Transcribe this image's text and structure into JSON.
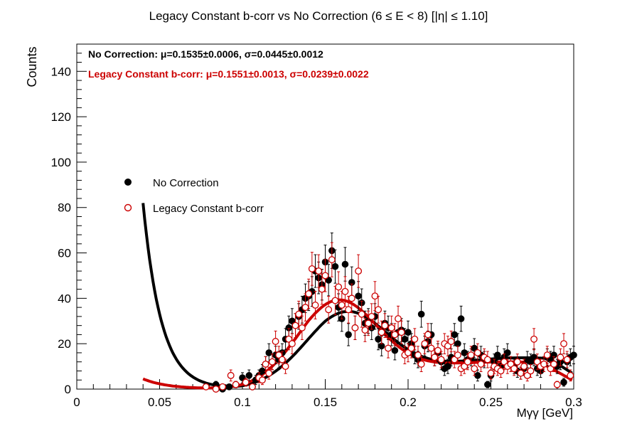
{
  "chart_data": {
    "type": "scatter",
    "title": "Legacy Constant b-corr vs No Correction   (6 ≤ E < 8)   [|η| ≤ 1.10]",
    "xlabel": "Mγγ [GeV]",
    "ylabel": "Counts",
    "xlim": [
      0,
      0.3
    ],
    "ylim": [
      0,
      152
    ],
    "x_ticks": [
      0,
      0.05,
      0.1,
      0.15,
      0.2,
      0.25,
      0.3
    ],
    "x_tick_labels": [
      "0",
      "0.05",
      "0.1",
      "0.15",
      "0.2",
      "0.25",
      "0.3"
    ],
    "y_ticks": [
      0,
      20,
      40,
      60,
      80,
      100,
      120,
      140
    ],
    "y_tick_labels": [
      "0",
      "20",
      "40",
      "60",
      "80",
      "100",
      "120",
      "140"
    ],
    "grid": false,
    "legend_position": "middle-left",
    "legend": [
      {
        "label": "No Correction",
        "marker": "filled-circle",
        "color": "#000000"
      },
      {
        "label": "Legacy Constant b-corr",
        "marker": "open-circle",
        "color": "#cc0000"
      }
    ],
    "annotations": [
      {
        "text": "No Correction: μ=0.1535±0.0006, σ=0.0445±0.0012",
        "color": "#000000"
      },
      {
        "text": "Legacy Constant b-corr: μ=0.1551±0.0013, σ=0.0239±0.0022",
        "color": "#cc0000"
      }
    ],
    "series": [
      {
        "name": "No Correction",
        "style": "filled-circle",
        "color": "#000000",
        "x": [
          0.084,
          0.088,
          0.092,
          0.096,
          0.1,
          0.104,
          0.106,
          0.108,
          0.11,
          0.112,
          0.114,
          0.116,
          0.118,
          0.12,
          0.122,
          0.124,
          0.126,
          0.128,
          0.13,
          0.132,
          0.134,
          0.136,
          0.138,
          0.14,
          0.142,
          0.144,
          0.146,
          0.148,
          0.15,
          0.152,
          0.154,
          0.156,
          0.158,
          0.16,
          0.162,
          0.164,
          0.166,
          0.168,
          0.17,
          0.172,
          0.174,
          0.176,
          0.178,
          0.18,
          0.182,
          0.184,
          0.186,
          0.188,
          0.19,
          0.192,
          0.194,
          0.196,
          0.198,
          0.2,
          0.202,
          0.204,
          0.206,
          0.208,
          0.21,
          0.212,
          0.214,
          0.216,
          0.218,
          0.22,
          0.222,
          0.224,
          0.226,
          0.228,
          0.23,
          0.232,
          0.234,
          0.236,
          0.238,
          0.24,
          0.242,
          0.244,
          0.246,
          0.248,
          0.25,
          0.252,
          0.254,
          0.256,
          0.258,
          0.26,
          0.262,
          0.264,
          0.266,
          0.268,
          0.27,
          0.272,
          0.274,
          0.276,
          0.278,
          0.28,
          0.282,
          0.284,
          0.286,
          0.288,
          0.29,
          0.292,
          0.294,
          0.296,
          0.298,
          0.3
        ],
        "y": [
          2,
          0,
          1,
          2,
          5,
          6,
          1,
          4,
          6,
          8,
          11,
          16,
          12,
          15,
          13,
          16,
          22,
          27,
          30,
          28,
          32,
          35,
          40,
          41,
          43,
          52,
          49,
          46,
          56,
          48,
          61,
          54,
          36,
          31,
          55,
          24,
          47,
          27,
          41,
          38,
          29,
          30,
          27,
          32,
          22,
          19,
          29,
          27,
          24,
          17,
          25,
          26,
          22,
          25,
          20,
          15,
          13,
          33,
          19,
          21,
          24,
          14,
          16,
          12,
          9,
          10,
          14,
          24,
          20,
          31,
          16,
          13,
          14,
          18,
          6,
          15,
          13,
          2,
          6,
          12,
          15,
          10,
          14,
          16,
          11,
          10,
          8,
          7,
          9,
          13,
          12,
          14,
          9,
          8,
          11,
          14,
          13,
          15,
          10,
          12,
          3,
          12,
          14,
          15
        ],
        "fit": {
          "type": "gaussian+polynomial",
          "mean": 0.1535,
          "sigma": 0.0445
        }
      },
      {
        "name": "Legacy Constant b-corr",
        "style": "open-circle",
        "color": "#cc0000",
        "x": [
          0.078,
          0.084,
          0.088,
          0.093,
          0.096,
          0.102,
          0.106,
          0.11,
          0.112,
          0.114,
          0.116,
          0.118,
          0.12,
          0.122,
          0.124,
          0.126,
          0.128,
          0.13,
          0.132,
          0.134,
          0.136,
          0.138,
          0.14,
          0.142,
          0.144,
          0.146,
          0.148,
          0.15,
          0.152,
          0.154,
          0.156,
          0.158,
          0.16,
          0.162,
          0.164,
          0.166,
          0.168,
          0.17,
          0.172,
          0.174,
          0.176,
          0.178,
          0.18,
          0.182,
          0.184,
          0.186,
          0.188,
          0.19,
          0.192,
          0.194,
          0.196,
          0.198,
          0.2,
          0.202,
          0.204,
          0.206,
          0.208,
          0.21,
          0.212,
          0.214,
          0.216,
          0.218,
          0.22,
          0.222,
          0.224,
          0.226,
          0.228,
          0.23,
          0.232,
          0.234,
          0.236,
          0.238,
          0.24,
          0.242,
          0.244,
          0.246,
          0.248,
          0.25,
          0.252,
          0.254,
          0.256,
          0.258,
          0.26,
          0.262,
          0.264,
          0.266,
          0.268,
          0.27,
          0.272,
          0.274,
          0.276,
          0.278,
          0.28,
          0.282,
          0.284,
          0.286,
          0.288,
          0.29,
          0.292,
          0.294,
          0.296,
          0.298
        ],
        "y": [
          1,
          0,
          1,
          6,
          2,
          3,
          1,
          5,
          4,
          11,
          7,
          12,
          21,
          15,
          13,
          10,
          22,
          20,
          28,
          33,
          27,
          36,
          42,
          53,
          37,
          52,
          44,
          50,
          35,
          57,
          39,
          45,
          37,
          43,
          35,
          40,
          27,
          52,
          33,
          26,
          29,
          32,
          41,
          35,
          25,
          28,
          18,
          27,
          24,
          31,
          25,
          15,
          16,
          18,
          22,
          15,
          11,
          20,
          24,
          18,
          14,
          17,
          13,
          20,
          19,
          21,
          13,
          15,
          9,
          10,
          12,
          15,
          9,
          16,
          11,
          14,
          13,
          7,
          10,
          9,
          8,
          12,
          10,
          11,
          9,
          12,
          7,
          10,
          6,
          8,
          22,
          12,
          10,
          11,
          15,
          9,
          11,
          2,
          14,
          20,
          13,
          6
        ],
        "fit": {
          "type": "gaussian+polynomial",
          "mean": 0.1551,
          "sigma": 0.0239
        }
      }
    ]
  }
}
